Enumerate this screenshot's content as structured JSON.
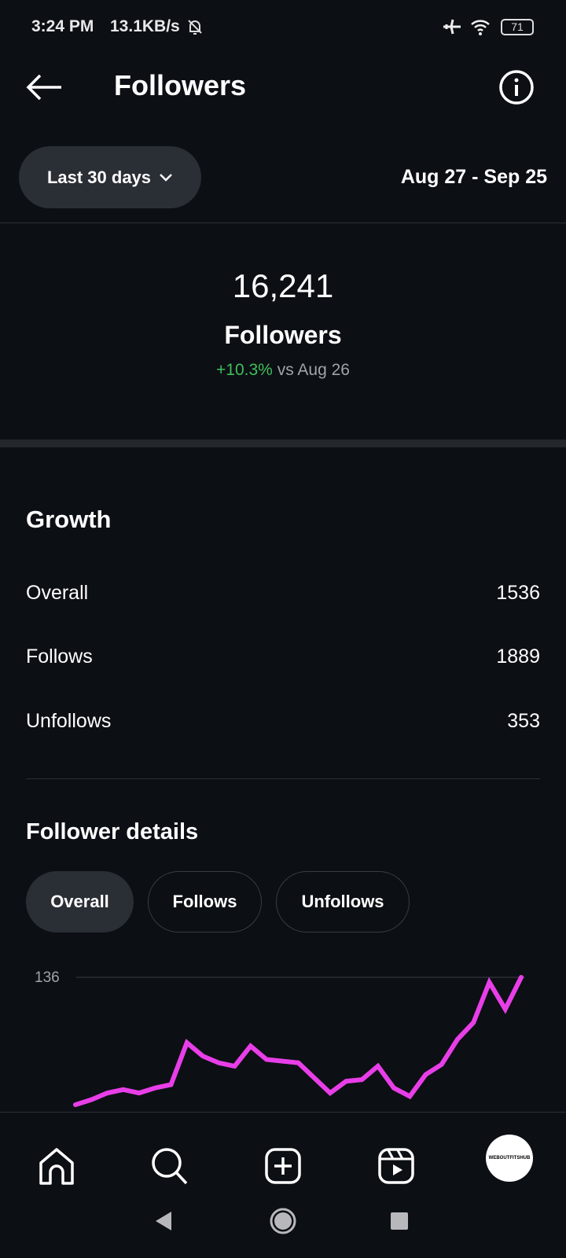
{
  "status_bar": {
    "time": "3:24 PM",
    "speed": "13.1KB/s",
    "battery": "71"
  },
  "header": {
    "title": "Followers"
  },
  "filter": {
    "range_label": "Last 30 days",
    "date_range": "Aug 27 - Sep 25"
  },
  "summary": {
    "count": "16,241",
    "label": "Followers",
    "change": "+10.3%",
    "compare": "vs Aug 26",
    "change_color": "#3fbf5a"
  },
  "growth": {
    "title": "Growth",
    "rows": [
      {
        "label": "Overall",
        "value": "1536"
      },
      {
        "label": "Follows",
        "value": "1889"
      },
      {
        "label": "Unfollows",
        "value": "353"
      }
    ]
  },
  "details": {
    "title": "Follower details",
    "chips": [
      {
        "label": "Overall",
        "active": true
      },
      {
        "label": "Follows",
        "active": false
      },
      {
        "label": "Unfollows",
        "active": false
      }
    ]
  },
  "chart_data": {
    "type": "line",
    "color": "#e83ee8",
    "ylim": [
      0,
      136
    ],
    "ytick_labels": [
      "136"
    ],
    "grid": true,
    "values": [
      60,
      63,
      67,
      69,
      67,
      70,
      72,
      97,
      89,
      85,
      83,
      95,
      87,
      86,
      85,
      76,
      67,
      74,
      75,
      83,
      70,
      65,
      78,
      84,
      99,
      109,
      133,
      117,
      136
    ]
  },
  "profile": {
    "avatar_text": "WEBOUTFITSHUB"
  }
}
